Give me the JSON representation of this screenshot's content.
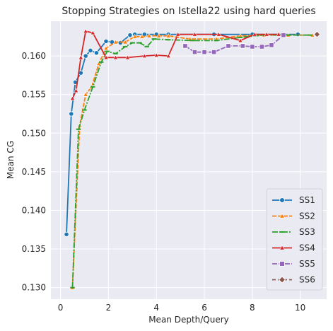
{
  "chart_data": {
    "type": "line",
    "title": "Stopping Strategies on Istella22 using hard queries",
    "xlabel": "Mean Depth/Query",
    "ylabel": "Mean CG",
    "xlim": [
      -0.4,
      11.1
    ],
    "ylim": [
      0.1285,
      0.1645
    ],
    "xticks": [
      0,
      2,
      4,
      6,
      8,
      10
    ],
    "yticks": [
      0.13,
      0.135,
      0.14,
      0.145,
      0.15,
      0.155,
      0.16
    ],
    "grid": true,
    "legend_position": "bottom-right",
    "series": [
      {
        "name": "SS1",
        "color": "#1f77b4",
        "marker": "circle",
        "x": [
          0.25,
          0.45,
          0.62,
          0.85,
          1.05,
          1.25,
          1.5,
          1.9,
          2.15,
          2.5,
          2.9,
          3.1,
          3.5,
          4.0,
          4.5,
          6.4,
          8.0,
          9.9
        ],
        "y": [
          0.1369,
          0.1525,
          0.1566,
          0.1578,
          0.16,
          0.1607,
          0.1604,
          0.1619,
          0.1618,
          0.1617,
          0.1627,
          0.1628,
          0.1628,
          0.1628,
          0.1628,
          0.1628,
          0.1628,
          0.1628
        ]
      },
      {
        "name": "SS2",
        "color": "#ff7f0e",
        "marker": "triangle",
        "x": [
          0.5,
          0.8,
          1.05,
          1.3,
          1.6,
          1.9,
          2.3,
          2.7,
          3.1,
          3.4,
          3.7,
          4.1,
          4.5,
          5.4,
          6.5,
          7.5,
          8.5,
          9.5,
          10.5
        ],
        "y": [
          0.13,
          0.151,
          0.155,
          0.156,
          0.159,
          0.161,
          0.1618,
          0.1618,
          0.1625,
          0.1625,
          0.1626,
          0.1626,
          0.1626,
          0.1622,
          0.1622,
          0.1626,
          0.1627,
          0.1627,
          0.1627
        ]
      },
      {
        "name": "SS3",
        "color": "#2ca02c",
        "marker": "tick",
        "x": [
          0.5,
          0.75,
          1.0,
          1.35,
          1.7,
          1.95,
          2.3,
          2.7,
          3.0,
          3.3,
          3.6,
          3.9,
          4.5,
          5.5,
          6.5,
          7.5,
          8.5,
          9.5,
          10.4
        ],
        "y": [
          0.13,
          0.1505,
          0.153,
          0.156,
          0.1592,
          0.1606,
          0.1603,
          0.1612,
          0.1617,
          0.1617,
          0.1612,
          0.1622,
          0.1621,
          0.162,
          0.162,
          0.1624,
          0.1627,
          0.1627,
          0.1627
        ]
      },
      {
        "name": "SS4",
        "color": "#d62728",
        "marker": "triangle",
        "x": [
          0.5,
          0.65,
          0.85,
          1.05,
          1.35,
          1.9,
          2.3,
          2.8,
          3.5,
          4.0,
          4.5,
          4.9,
          5.6,
          6.6,
          7.5,
          8.1,
          8.6,
          9.1
        ],
        "y": [
          0.1545,
          0.1555,
          0.1598,
          0.1632,
          0.163,
          0.1598,
          0.1598,
          0.1598,
          0.16,
          0.1601,
          0.16,
          0.1628,
          0.1628,
          0.1628,
          0.162,
          0.1628,
          0.1628,
          0.1628
        ]
      },
      {
        "name": "SS5",
        "color": "#9467bd",
        "marker": "square",
        "x": [
          5.2,
          5.6,
          6.0,
          6.4,
          7.0,
          7.6,
          8.0,
          8.4,
          8.8,
          9.3
        ],
        "y": [
          0.1613,
          0.1605,
          0.1605,
          0.1605,
          0.1613,
          0.1613,
          0.1612,
          0.1612,
          0.1614,
          0.1627
        ]
      },
      {
        "name": "SS6",
        "color": "#8c564b",
        "marker": "diamond",
        "x": [
          10.7
        ],
        "y": [
          0.1628
        ]
      }
    ]
  }
}
